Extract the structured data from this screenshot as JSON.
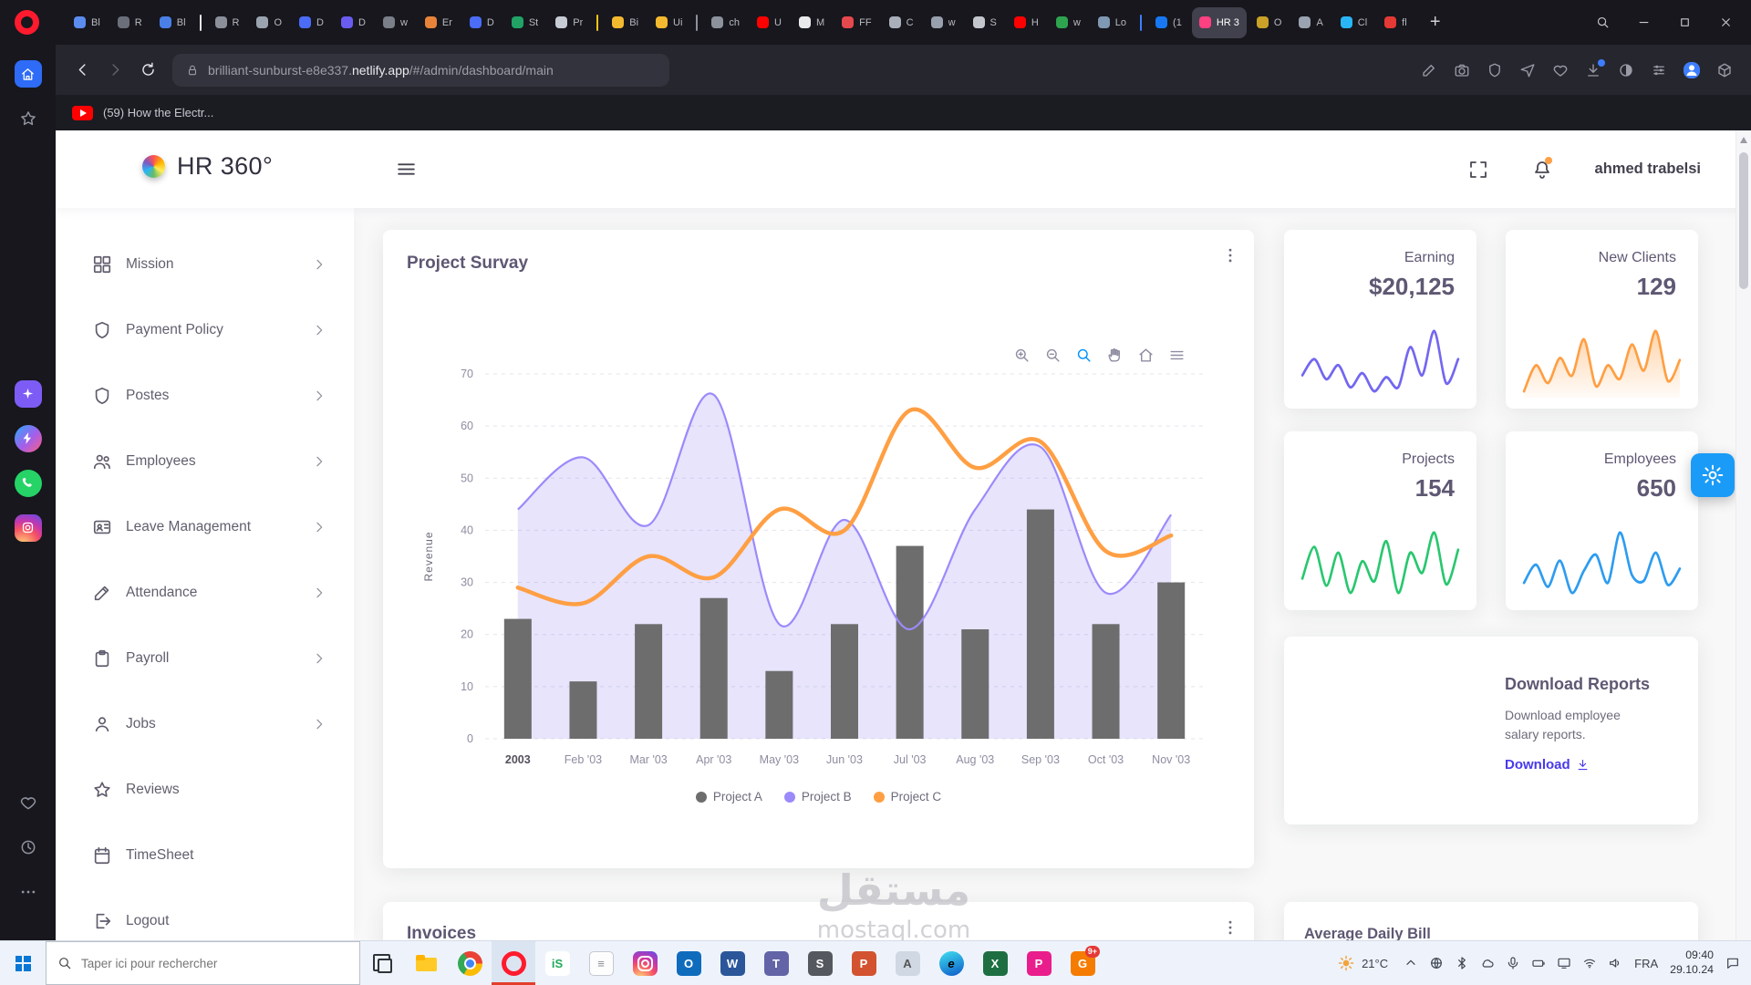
{
  "browser": {
    "new_tab_label": "+",
    "tabs": [
      {
        "label": "Bl",
        "color": "#5b8def"
      },
      {
        "label": "R",
        "color": "#6a6f7a"
      },
      {
        "label": "Bl",
        "color": "#4a7fe8"
      },
      {
        "divider": "#e8e8ee"
      },
      {
        "label": "R",
        "color": "#8a8f99"
      },
      {
        "label": "O",
        "color": "#9aa4b0"
      },
      {
        "label": "D",
        "color": "#4a6cf7"
      },
      {
        "label": "D",
        "color": "#6a5cf0"
      },
      {
        "label": "w",
        "color": "#7a7f88"
      },
      {
        "label": "Er",
        "color": "#e8833a"
      },
      {
        "label": "D",
        "color": "#4a6cf7"
      },
      {
        "label": "St",
        "color": "#21a366"
      },
      {
        "label": "Pr",
        "color": "#c8ccd4"
      },
      {
        "divider": "#f5c518"
      },
      {
        "label": "Bi",
        "color": "#f3ba2f"
      },
      {
        "label": "Ui",
        "color": "#f3ba2f"
      },
      {
        "divider": "#8b929c"
      },
      {
        "label": "ch",
        "color": "#8b929c"
      },
      {
        "label": "U",
        "color": "#ff0000"
      },
      {
        "label": "M",
        "color": "#e9eaec"
      },
      {
        "label": "FF",
        "color": "#e5484d"
      },
      {
        "label": "C",
        "color": "#aab0bb"
      },
      {
        "label": "w",
        "color": "#98a0ad"
      },
      {
        "label": "S",
        "color": "#c3c7cd"
      },
      {
        "label": "H",
        "color": "#ff0000"
      },
      {
        "label": "w",
        "color": "#2ea44f"
      },
      {
        "label": "Lo",
        "color": "#7f98b3"
      },
      {
        "divider": "#3d7eff"
      },
      {
        "label": "(1",
        "color": "#1877f2"
      },
      {
        "label": "HR 3",
        "color": "#ff4081",
        "active": true
      },
      {
        "label": "O",
        "color": "#c9a227"
      },
      {
        "label": "A",
        "color": "#9aa4b0"
      },
      {
        "label": "Cl",
        "color": "#29b6f6"
      },
      {
        "label": "fl",
        "color": "#e53935"
      }
    ],
    "address": {
      "url_plain": "brilliant-sunburst-e8e337.",
      "url_domain": "netlify.app",
      "url_path": "/#/admin/dashboard/main"
    },
    "notification_text": "(59) How the Electr...",
    "side_rail": [
      {
        "name": "home-icon",
        "tile": "t-home",
        "icon": "home",
        "section": "top"
      },
      {
        "name": "bookmarks-star-icon",
        "icon": "star",
        "section": "top"
      },
      {
        "name": "aria-icon",
        "tile": "t-aria",
        "icon": "sparkle",
        "section": "mid"
      },
      {
        "name": "messenger-icon",
        "tile": "t-messenger",
        "icon": "bolt",
        "section": "mid"
      },
      {
        "name": "whatsapp-icon",
        "tile": "t-whatsapp",
        "icon": "phone",
        "section": "mid"
      },
      {
        "name": "instagram-icon",
        "tile": "t-instagram",
        "icon": "cameraDot",
        "section": "mid"
      },
      {
        "name": "favorites-heart-icon",
        "icon": "heart",
        "section": "bottom"
      },
      {
        "name": "history-icon",
        "icon": "clock",
        "section": "bottom"
      },
      {
        "name": "more-options-icon",
        "icon": "dots",
        "section": "bottom"
      }
    ]
  },
  "dashboard": {
    "brand": "HR 360°",
    "user_name": "ahmed trabelsi",
    "sidebar": [
      {
        "label": "Mission",
        "icon": "grid",
        "chevron": true
      },
      {
        "label": "Payment Policy",
        "icon": "shield",
        "chevron": true
      },
      {
        "label": "Postes",
        "icon": "shield",
        "chevron": true
      },
      {
        "label": "Employees",
        "icon": "users",
        "chevron": true
      },
      {
        "label": "Leave Management",
        "icon": "idcard",
        "chevron": true
      },
      {
        "label": "Attendance",
        "icon": "edit",
        "chevron": true
      },
      {
        "label": "Payroll",
        "icon": "clipboard",
        "chevron": true
      },
      {
        "label": "Jobs",
        "icon": "person",
        "chevron": true
      },
      {
        "label": "Reviews",
        "icon": "star",
        "chevron": false
      },
      {
        "label": "TimeSheet",
        "icon": "calendar",
        "chevron": false
      },
      {
        "label": "Logout",
        "icon": "logout",
        "chevron": false
      }
    ],
    "stat_cards": [
      {
        "label": "Earning",
        "value": "$20,125"
      },
      {
        "label": "New Clients",
        "value": "129"
      },
      {
        "label": "Projects",
        "value": "154"
      },
      {
        "label": "Employees",
        "value": "650"
      }
    ],
    "download_card": {
      "title": "Download Reports",
      "body": "Download employee salary reports.",
      "link_label": "Download"
    },
    "invoices_title": "Invoices",
    "avg_bill_title": "Average Daily Bill"
  },
  "chart_data": [
    {
      "name": "project-survey",
      "type": "mixed",
      "title": "Project Survay",
      "ylabel": "Revenue",
      "ylim": [
        0,
        70
      ],
      "yticks": [
        0,
        10,
        20,
        30,
        40,
        50,
        60,
        70
      ],
      "grid": "dashed-horizontal",
      "legend_position": "bottom",
      "categories": [
        "2003",
        "Feb '03",
        "Mar '03",
        "Apr '03",
        "May '03",
        "Jun '03",
        "Jul '03",
        "Aug '03",
        "Sep '03",
        "Oct '03",
        "Nov '03"
      ],
      "series": [
        {
          "name": "Project A",
          "type": "bar",
          "color": "#6d6d6d",
          "values": [
            23,
            11,
            22,
            27,
            13,
            22,
            37,
            21,
            44,
            22,
            30
          ]
        },
        {
          "name": "Project B",
          "type": "area",
          "color": "#9b8afb",
          "fill": "rgba(124,104,238,0.18)",
          "values": [
            44,
            54,
            41,
            66,
            22,
            42,
            21,
            44,
            56,
            28,
            43
          ]
        },
        {
          "name": "Project C",
          "type": "line",
          "color": "#ff9f43",
          "values": [
            29,
            26,
            35,
            31,
            44,
            40,
            63,
            52,
            57,
            36,
            39
          ]
        }
      ]
    },
    {
      "name": "earning-trend",
      "type": "line",
      "color": "#7367f0",
      "values": [
        42,
        58,
        38,
        52,
        30,
        44,
        26,
        40,
        30,
        70,
        42,
        86,
        34,
        58
      ]
    },
    {
      "name": "new-clients-trend",
      "type": "line",
      "color": "#ff9f43",
      "area": true,
      "values": [
        30,
        55,
        38,
        62,
        45,
        80,
        35,
        55,
        42,
        75,
        50,
        88,
        40,
        60
      ]
    },
    {
      "name": "projects-trend",
      "type": "line",
      "color": "#28c76f",
      "values": [
        40,
        62,
        35,
        58,
        30,
        52,
        38,
        66,
        30,
        58,
        44,
        72,
        36,
        60
      ]
    },
    {
      "name": "employees-trend",
      "type": "line",
      "color": "#2d9cf0",
      "values": [
        38,
        56,
        34,
        60,
        28,
        50,
        66,
        38,
        88,
        46,
        40,
        68,
        36,
        52
      ]
    }
  ],
  "watermark": {
    "line1": "مستقل",
    "line2": "mostaql.com"
  },
  "taskbar": {
    "search_placeholder": "Taper ici pour rechercher",
    "temperature": "21°C",
    "language": "FRA",
    "time": "09:40",
    "date": "29.10.24",
    "apps": [
      {
        "name": "task-view"
      },
      {
        "name": "file-explorer"
      },
      {
        "name": "chrome"
      },
      {
        "name": "opera",
        "active": true
      },
      {
        "name": "iss",
        "letter": "iS",
        "bg": "#ffffff",
        "fg": "#1faa59"
      },
      {
        "name": "notepad",
        "letter": "≡"
      },
      {
        "name": "instagram"
      },
      {
        "name": "outlook",
        "letter": "O",
        "bg": "#0f6cbd",
        "fg": "#ffffff"
      },
      {
        "name": "word",
        "letter": "W",
        "bg": "#2b579a",
        "fg": "#ffffff"
      },
      {
        "name": "teams",
        "letter": "T",
        "bg": "#6264a7",
        "fg": "#ffffff"
      },
      {
        "name": "steam",
        "letter": "S",
        "bg": "#55585f",
        "fg": "#ffffff"
      },
      {
        "name": "powerpoint",
        "letter": "P",
        "bg": "#d35230",
        "fg": "#ffffff"
      },
      {
        "name": "paint",
        "letter": "A",
        "bg": "#cfd8e3",
        "fg": "#555555"
      },
      {
        "name": "edge",
        "letter": "e"
      },
      {
        "name": "excel",
        "letter": "X",
        "bg": "#1d6f42",
        "fg": "#ffffff"
      },
      {
        "name": "photos",
        "letter": "P",
        "bg": "#e91e8c",
        "fg": "#ffffff"
      },
      {
        "name": "game",
        "letter": "G",
        "bg": "#f57c00",
        "fg": "#ffffff",
        "badge": "9+"
      }
    ],
    "tray": [
      {
        "name": "chevron-up-icon",
        "icon": "chevup"
      },
      {
        "name": "globe-icon",
        "icon": "globe"
      },
      {
        "name": "bluetooth-icon",
        "icon": "bt"
      },
      {
        "name": "cloud-icon",
        "icon": "cloud"
      },
      {
        "name": "mic-icon",
        "icon": "mic"
      },
      {
        "name": "battery-icon",
        "icon": "battery"
      },
      {
        "name": "monitor-icon",
        "icon": "monitor"
      },
      {
        "name": "wifi-icon",
        "icon": "wifi"
      },
      {
        "name": "volume-icon",
        "icon": "volume"
      }
    ]
  }
}
